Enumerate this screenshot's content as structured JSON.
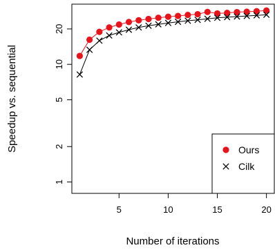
{
  "chart_data": {
    "type": "line",
    "title": "",
    "xlabel": "Number of iterations",
    "ylabel": "Speedup vs. sequential",
    "x": [
      1,
      2,
      3,
      4,
      5,
      6,
      7,
      8,
      9,
      10,
      11,
      12,
      13,
      14,
      15,
      16,
      17,
      18,
      19,
      20
    ],
    "xlim": [
      0.2,
      20.8
    ],
    "ylim": [
      0.8,
      32.5
    ],
    "y_scale": "log",
    "x_ticks": [
      5,
      10,
      15,
      20
    ],
    "x_tick_labels": [
      "5",
      "10",
      "15",
      "20"
    ],
    "y_ticks": [
      1,
      2,
      5,
      10,
      20
    ],
    "y_tick_labels": [
      "1",
      "2",
      "5",
      "10",
      "20"
    ],
    "grid": false,
    "legend_position": "bottom-right",
    "series": [
      {
        "name": "Ours",
        "marker": "filled-circle",
        "color": "#e8141c",
        "values": [
          11.8,
          16.2,
          18.9,
          20.6,
          21.8,
          22.9,
          23.7,
          24.3,
          24.9,
          25.4,
          25.8,
          26.3,
          26.7,
          27.9,
          27.1,
          27.4,
          27.8,
          28.0,
          28.3,
          28.7
        ]
      },
      {
        "name": "Cilk",
        "marker": "cross",
        "color": "#000000",
        "values": [
          8.2,
          13.3,
          15.9,
          17.6,
          18.7,
          19.7,
          20.6,
          21.3,
          21.9,
          22.5,
          23.0,
          23.5,
          23.9,
          24.4,
          24.9,
          25.2,
          25.5,
          25.8,
          26.1,
          26.4
        ]
      }
    ]
  }
}
